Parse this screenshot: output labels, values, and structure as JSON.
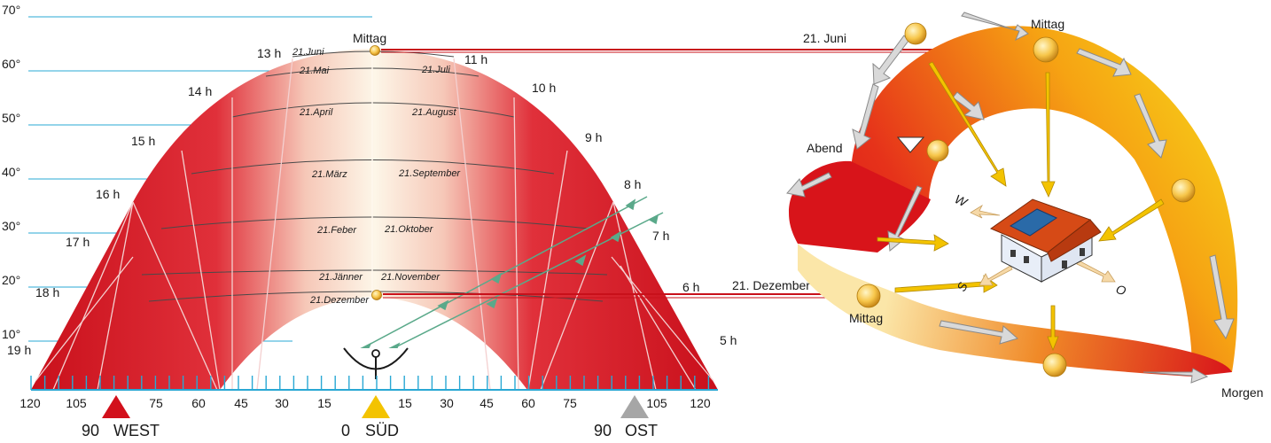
{
  "colors": {
    "sky_red": "#d2101b",
    "noon_white": "#fdf6e8",
    "grid_blue": "#29a8d4",
    "beam_red": "#c8101a",
    "ray_green": "#5aa98a",
    "marker_west": "#d2101b",
    "marker_south": "#f3c300",
    "marker_east": "#a6a6a6",
    "orbit_yellow": "#f7d21a",
    "orbit_red": "#d8141a",
    "arrow_gray": "#d9d9d9",
    "roof": "#d64a16",
    "panel": "#2a6aa8"
  },
  "altitude_labels": [
    "70°",
    "60°",
    "50°",
    "40°",
    "30°",
    "20°",
    "10°"
  ],
  "hour_labels": [
    "19 h",
    "18 h",
    "17 h",
    "16 h",
    "15 h",
    "14 h",
    "13 h",
    "11 h",
    "10 h",
    "9 h",
    "8 h",
    "7 h",
    "6 h",
    "5 h"
  ],
  "date_labels": {
    "left": [
      "21.Juni",
      "21.Mai",
      "21.April",
      "21.März",
      "21.Feber",
      "21.Jänner",
      "21.Dezember"
    ],
    "right": [
      "21.Juli",
      "21.August",
      "21.September",
      "21.Oktober",
      "21.November"
    ]
  },
  "noon_label": "Mittag",
  "azimuth_ticks": [
    "120",
    "105",
    "75",
    "60",
    "45",
    "30",
    "15",
    "15",
    "30",
    "45",
    "60",
    "75",
    "105",
    "120"
  ],
  "directions": {
    "west": {
      "value": "90",
      "label": "WEST"
    },
    "south": {
      "value": "0",
      "label": "SÜD"
    },
    "east": {
      "value": "90",
      "label": "OST"
    }
  },
  "right_diagram": {
    "summer_line": "21. Juni",
    "winter_line": "21. Dezember",
    "noon_top": "Mittag",
    "noon_bottom": "Mittag",
    "evening": "Abend",
    "morning": "Morgen",
    "compass": {
      "w": "W",
      "s": "S",
      "o": "O"
    }
  }
}
